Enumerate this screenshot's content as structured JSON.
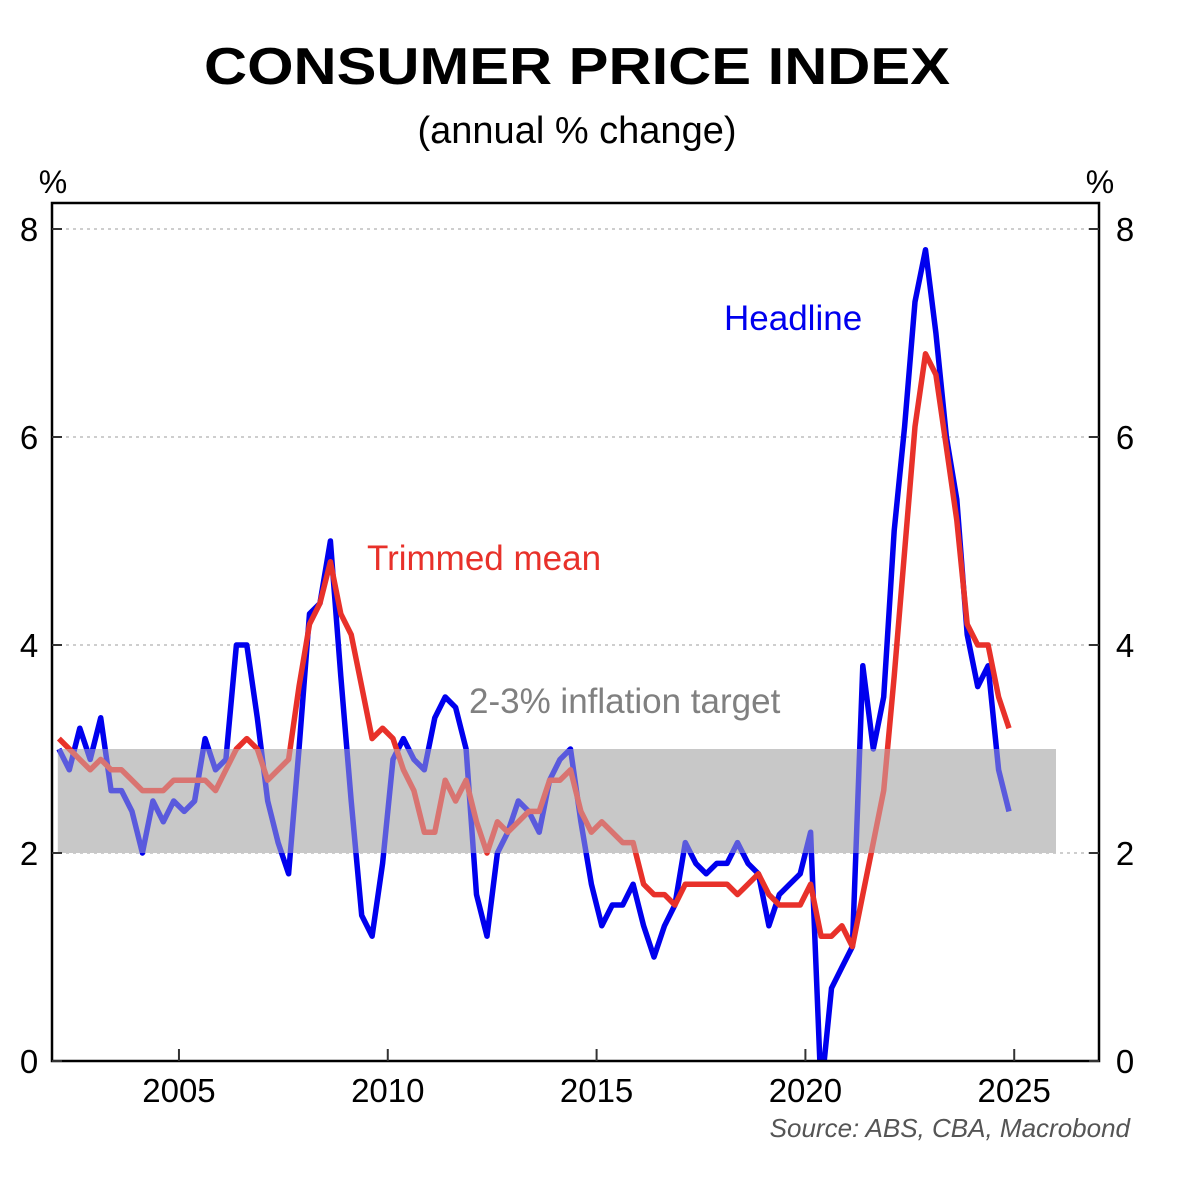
{
  "chart_data": {
    "type": "line",
    "title": "CONSUMER PRICE INDEX",
    "subtitle": "(annual % change)",
    "xlabel": "",
    "ylabel_left": "%",
    "ylabel_right": "%",
    "xlim": [
      2001.96,
      2027.03
    ],
    "ylim": [
      0,
      8
    ],
    "x_ticks": [
      2005,
      2010,
      2015,
      2020,
      2025
    ],
    "x_tick_labels": [
      "2005",
      "2010",
      "2015",
      "2020",
      "2025"
    ],
    "y_ticks": [
      0,
      2,
      4,
      6,
      8
    ],
    "y_tick_labels": [
      "0",
      "2",
      "4",
      "6",
      "8"
    ],
    "grid": "horizontal dotted",
    "x_start": 2002.125,
    "x_step": 0.25,
    "band": {
      "label": "2-3% inflation target",
      "y_from": 2,
      "y_to": 3,
      "x_from": 2002.1,
      "x_to": 2026.0,
      "color": "#c8c8c8"
    },
    "series": [
      {
        "name": "Headline",
        "color": "#0000ee",
        "values": [
          3.0,
          2.8,
          3.2,
          2.9,
          3.3,
          2.6,
          2.6,
          2.4,
          2.0,
          2.5,
          2.3,
          2.5,
          2.4,
          2.5,
          3.1,
          2.8,
          2.9,
          4.0,
          4.0,
          3.3,
          2.5,
          2.1,
          1.8,
          3.0,
          4.3,
          4.4,
          5.0,
          3.7,
          2.5,
          1.4,
          1.2,
          1.9,
          2.9,
          3.1,
          2.9,
          2.8,
          3.3,
          3.5,
          3.4,
          3.0,
          1.6,
          1.2,
          2.0,
          2.2,
          2.5,
          2.4,
          2.2,
          2.7,
          2.9,
          3.0,
          2.3,
          1.7,
          1.3,
          1.5,
          1.5,
          1.7,
          1.3,
          1.0,
          1.3,
          1.5,
          2.1,
          1.9,
          1.8,
          1.9,
          1.9,
          2.1,
          1.9,
          1.8,
          1.3,
          1.6,
          1.7,
          1.8,
          2.2,
          -0.3,
          0.7,
          0.9,
          1.1,
          3.8,
          3.0,
          3.5,
          5.1,
          6.1,
          7.3,
          7.8,
          7.0,
          6.0,
          5.4,
          4.1,
          3.6,
          3.8,
          2.8,
          2.4
        ]
      },
      {
        "name": "Trimmed mean",
        "color": "#e8312a",
        "values": [
          3.1,
          3.0,
          2.9,
          2.8,
          2.9,
          2.8,
          2.8,
          2.7,
          2.6,
          2.6,
          2.6,
          2.7,
          2.7,
          2.7,
          2.7,
          2.6,
          2.8,
          3.0,
          3.1,
          3.0,
          2.7,
          2.8,
          2.9,
          3.6,
          4.2,
          4.4,
          4.8,
          4.3,
          4.1,
          3.6,
          3.1,
          3.2,
          3.1,
          2.8,
          2.6,
          2.2,
          2.2,
          2.7,
          2.5,
          2.7,
          2.3,
          2.0,
          2.3,
          2.2,
          2.3,
          2.4,
          2.4,
          2.7,
          2.7,
          2.8,
          2.4,
          2.2,
          2.3,
          2.2,
          2.1,
          2.1,
          1.7,
          1.6,
          1.6,
          1.5,
          1.7,
          1.7,
          1.7,
          1.7,
          1.7,
          1.6,
          1.7,
          1.8,
          1.6,
          1.5,
          1.5,
          1.5,
          1.7,
          1.2,
          1.2,
          1.3,
          1.1,
          1.6,
          2.1,
          2.6,
          3.7,
          4.9,
          6.1,
          6.8,
          6.6,
          5.9,
          5.2,
          4.2,
          4.0,
          4.0,
          3.5,
          3.2
        ]
      }
    ],
    "annotations": {
      "headline_label": "Headline",
      "trimmed_label": "Trimmed mean",
      "band_label": "2-3% inflation target",
      "band_label_color": "#808080"
    },
    "source": "Source: ABS, CBA, Macrobond"
  }
}
